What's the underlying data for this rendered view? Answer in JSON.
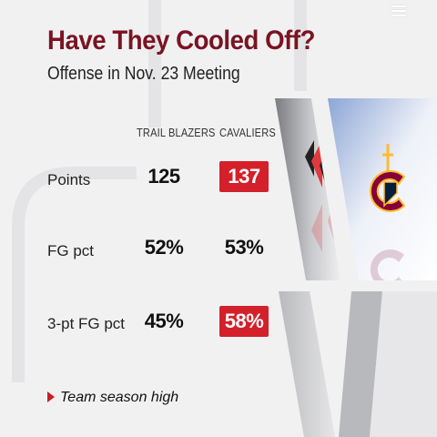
{
  "header": {
    "title": "Have They Cooled Off?",
    "subtitle": "Offense in Nov. 23 Meeting"
  },
  "table": {
    "columns": [
      "TRAIL BLAZERS",
      "CAVALIERS"
    ],
    "rows": [
      {
        "label": "Points",
        "blazers": "125",
        "cavaliers": "137",
        "highlight": "cavaliers"
      },
      {
        "label": "FG pct",
        "blazers": "52%",
        "cavaliers": "53%",
        "highlight": null
      },
      {
        "label": "3-pt FG pct",
        "blazers": "45%",
        "cavaliers": "58%",
        "highlight": "cavaliers"
      }
    ]
  },
  "legend": {
    "note": "Team season high",
    "highlight_color": "#d4202a"
  },
  "colors": {
    "title": "#7a1422",
    "blazers_red": "#e03a3e",
    "cavaliers_wine": "#860038",
    "cavaliers_navy": "#041e42",
    "cavaliers_gold": "#fdbb30"
  },
  "icons": {
    "menu": "hamburger-menu-icon",
    "blazers": "trail-blazers-logo",
    "cavaliers": "cavaliers-logo"
  }
}
